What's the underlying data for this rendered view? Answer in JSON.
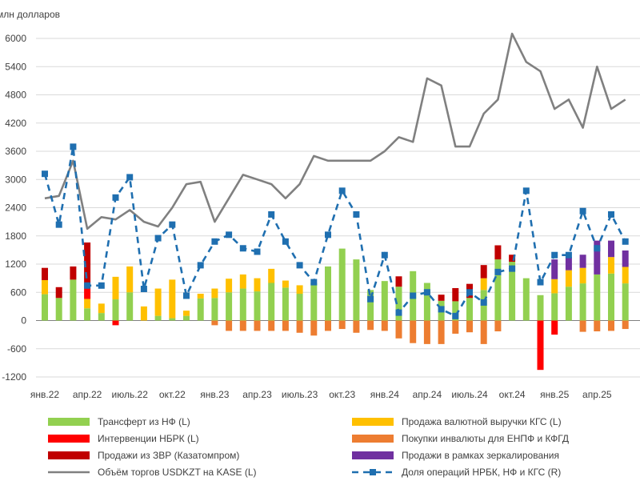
{
  "chart_data": {
    "type": "bar",
    "ylabel": "млн долларов",
    "ylim": [
      -1200,
      6000
    ],
    "yticks": [
      6000,
      5400,
      4800,
      4200,
      3600,
      3000,
      2400,
      1800,
      1200,
      600,
      0,
      -600,
      -1200
    ],
    "ytick_labels": [
      "6000",
      "5400",
      "4800",
      "4200",
      "3600",
      "3000",
      "2400",
      "1800",
      "1200",
      "600",
      "0",
      "-600",
      "-1200"
    ],
    "y2lim": [
      -20,
      80
    ],
    "xtick_labels": [
      {
        "label": "янв.22",
        "index": 0
      },
      {
        "label": "апр.22",
        "index": 3
      },
      {
        "label": "июль.22",
        "index": 6
      },
      {
        "label": "окт.22",
        "index": 9
      },
      {
        "label": "янв.23",
        "index": 12
      },
      {
        "label": "апр.23",
        "index": 15
      },
      {
        "label": "июль.23",
        "index": 18
      },
      {
        "label": "окт.23",
        "index": 21
      },
      {
        "label": "янв.24",
        "index": 24
      },
      {
        "label": "апр.24",
        "index": 27
      },
      {
        "label": "июль.24",
        "index": 30
      },
      {
        "label": "окт.24",
        "index": 33
      },
      {
        "label": "янв.25",
        "index": 36
      },
      {
        "label": "апр.25",
        "index": 39
      }
    ],
    "n_periods": 42,
    "stacked": true,
    "series": [
      {
        "name": "Трансферт из НФ (L)",
        "kind": "bar",
        "color": "#92d050",
        "values": [
          560,
          480,
          870,
          260,
          160,
          450,
          600,
          0,
          100,
          50,
          100,
          470,
          480,
          600,
          680,
          620,
          800,
          700,
          570,
          800,
          1150,
          1530,
          1300,
          650,
          840,
          720,
          1050,
          800,
          420,
          410,
          480,
          650,
          1300,
          1250,
          900,
          540,
          580,
          720,
          790,
          980,
          1000,
          790
        ]
      },
      {
        "name": "Продажа валютной выручки КГС (L)",
        "kind": "bar",
        "color": "#ffc000",
        "values": [
          300,
          0,
          0,
          200,
          200,
          480,
          550,
          300,
          580,
          820,
          110,
          100,
          200,
          290,
          300,
          280,
          300,
          150,
          180,
          0,
          0,
          0,
          0,
          0,
          0,
          0,
          0,
          0,
          0,
          0,
          0,
          250,
          0,
          0,
          0,
          0,
          300,
          350,
          330,
          0,
          350,
          350
        ]
      },
      {
        "name": "Интервенции НБРК (L)",
        "kind": "bar",
        "color": "#ff0000",
        "values": [
          0,
          0,
          0,
          300,
          0,
          -100,
          0,
          0,
          0,
          0,
          0,
          0,
          0,
          0,
          0,
          0,
          0,
          0,
          0,
          0,
          0,
          0,
          0,
          0,
          0,
          0,
          0,
          0,
          0,
          0,
          0,
          0,
          0,
          0,
          0,
          -1050,
          -300,
          0,
          0,
          0,
          0,
          0
        ]
      },
      {
        "name": "Покупки инвалюты для ЕНПФ и КФГД (L)",
        "kind": "bar",
        "color": "#ed7d31",
        "values": [
          0,
          0,
          0,
          0,
          0,
          0,
          0,
          0,
          0,
          0,
          0,
          0,
          -100,
          -220,
          -220,
          -220,
          -220,
          -220,
          -260,
          -320,
          -220,
          -180,
          -260,
          -200,
          -220,
          -380,
          -480,
          -500,
          -500,
          -280,
          -250,
          -500,
          -230,
          0,
          0,
          0,
          0,
          0,
          -240,
          -230,
          -220,
          -180
        ]
      },
      {
        "name": "Продажи из ЗВР (Казатомпром)",
        "kind": "bar",
        "color": "#c00000",
        "values": [
          260,
          230,
          280,
          900,
          0,
          0,
          0,
          0,
          0,
          0,
          0,
          0,
          0,
          0,
          0,
          0,
          0,
          0,
          0,
          0,
          0,
          0,
          0,
          0,
          0,
          220,
          0,
          0,
          130,
          280,
          300,
          280,
          300,
          150,
          0,
          0,
          0,
          0,
          0,
          0,
          0,
          0
        ]
      },
      {
        "name": "Продажи в рамках зеркалирования",
        "kind": "bar",
        "color": "#7030a0",
        "values": [
          0,
          0,
          0,
          0,
          0,
          0,
          0,
          0,
          0,
          0,
          0,
          0,
          0,
          0,
          0,
          0,
          0,
          0,
          0,
          0,
          0,
          0,
          0,
          0,
          0,
          0,
          0,
          0,
          0,
          0,
          0,
          0,
          0,
          0,
          0,
          0,
          420,
          280,
          280,
          720,
          350,
          350
        ]
      },
      {
        "name": "Объём торгов USDKZT на KASE (L)",
        "kind": "line",
        "color": "#808080",
        "values": [
          2600,
          2650,
          3400,
          1950,
          2200,
          2150,
          2350,
          2100,
          2000,
          2400,
          2900,
          2950,
          2100,
          2600,
          3100,
          3000,
          2900,
          2600,
          2900,
          3500,
          3400,
          3400,
          3400,
          3400,
          3600,
          3900,
          3800,
          5150,
          5000,
          3700,
          3700,
          4400,
          4700,
          6100,
          5500,
          5300,
          4500,
          4700,
          4100,
          5400,
          4500,
          4700
        ]
      },
      {
        "name": "Доля операций НРБК, НФ и КГС (R)",
        "kind": "line-marker",
        "color": "#1f6fb0",
        "axis": "right",
        "values": [
          40,
          25,
          48,
          7,
          7,
          33,
          39,
          6,
          21,
          25,
          4,
          13,
          20,
          22,
          18,
          17,
          28,
          20,
          13,
          8,
          22,
          35,
          28,
          3,
          16,
          -1,
          4,
          5,
          0,
          -2,
          5,
          2,
          11,
          12,
          35,
          8,
          16,
          16,
          29,
          18,
          28,
          20
        ]
      }
    ]
  },
  "legend": [
    {
      "label": "Трансферт из НФ (L)",
      "color": "#92d050",
      "type": "bar"
    },
    {
      "label": "Продажа валютной выручки КГС (L)",
      "color": "#ffc000",
      "type": "bar"
    },
    {
      "label": "Интервенции НБРК (L)",
      "color": "#ff0000",
      "type": "bar"
    },
    {
      "label": "Покупки инвалюты для ЕНПФ и КФГД",
      "color": "#ed7d31",
      "type": "bar"
    },
    {
      "label": "Продажи из ЗВР (Казатомпром)",
      "color": "#c00000",
      "type": "bar"
    },
    {
      "label": "Продажи в рамках зеркалирования",
      "color": "#7030a0",
      "type": "bar"
    },
    {
      "label": "Объём торгов USDKZT на KASE (L)",
      "color": "#808080",
      "type": "line"
    },
    {
      "label": "Доля операций НРБК, НФ и КГС (R)",
      "color": "#1f6fb0",
      "type": "line-marker"
    }
  ],
  "colors": {
    "gridline": "#d9d9d9",
    "zero_line": "#808080",
    "axis_text": "#404040"
  }
}
